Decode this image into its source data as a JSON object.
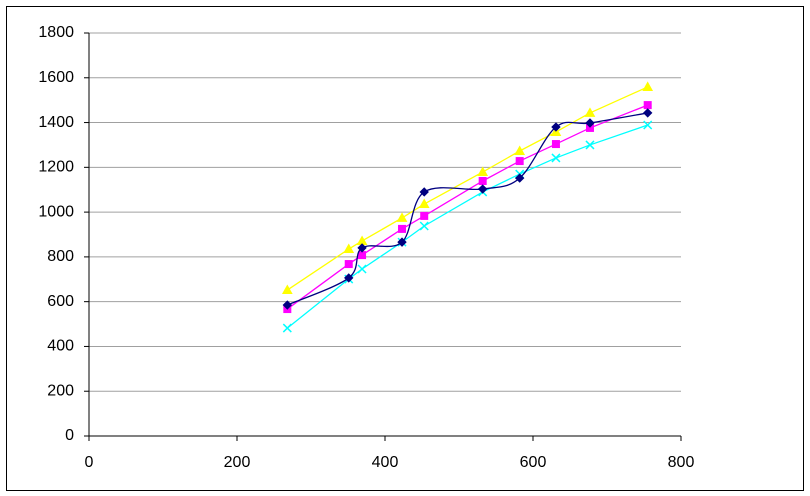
{
  "chart_data": {
    "type": "scatter",
    "x": [
      268,
      351,
      369,
      423,
      453,
      532,
      582,
      631,
      677,
      755
    ],
    "series": [
      {
        "color": "#000080",
        "marker": "diamond",
        "smooth": true,
        "values": [
          585,
          706,
          840,
          866,
          1090,
          1103,
          1152,
          1380,
          1398,
          1443
        ]
      },
      {
        "color": "#ff00ff",
        "marker": "square",
        "smooth": false,
        "values": [
          567,
          768,
          808,
          925,
          983,
          1139,
          1228,
          1304,
          1376,
          1478
        ]
      },
      {
        "color": "#ffff00",
        "marker": "triangle",
        "smooth": false,
        "values": [
          652,
          835,
          871,
          974,
          1036,
          1179,
          1273,
          1358,
          1443,
          1559
        ]
      },
      {
        "color": "#00ffff",
        "marker": "x",
        "smooth": false,
        "values": [
          482,
          701,
          746,
          866,
          938,
          1090,
          1170,
          1242,
          1300,
          1389
        ]
      }
    ],
    "xlim": [
      0,
      800
    ],
    "xticks": [
      0,
      200,
      400,
      600,
      800
    ],
    "ylim": [
      0,
      1800
    ],
    "yticks": [
      0,
      200,
      400,
      600,
      800,
      1000,
      1200,
      1400,
      1600,
      1800
    ],
    "grid": true
  }
}
